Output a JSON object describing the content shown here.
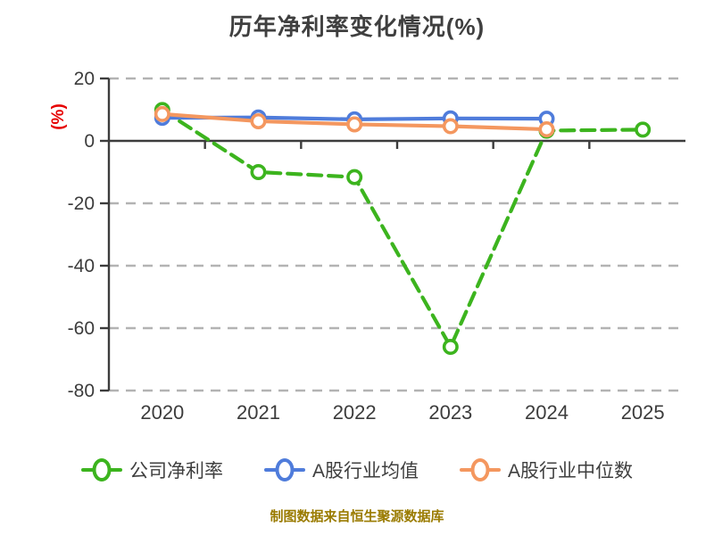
{
  "footer_note": "制图数据来自恒生聚源数据库",
  "chart_data": {
    "type": "line",
    "title": "历年净利率变化情况(%)",
    "ylabel": "(%)",
    "ylabel_color": "#e60000",
    "categories": [
      "2020",
      "2021",
      "2022",
      "2023",
      "2024",
      "2025"
    ],
    "y_ticks": [
      20,
      0,
      -20,
      -40,
      -60,
      -80
    ],
    "ylim": [
      -80,
      20
    ],
    "grid": "horizontal-dashed",
    "legend_position": "bottom",
    "series": [
      {
        "name": "公司净利率",
        "color": "#3cb41e",
        "style": "dashed",
        "marker": "circle-white-fill",
        "values": [
          9.9,
          -10.0,
          -11.6,
          -66.0,
          3.3,
          3.6
        ]
      },
      {
        "name": "A股行业均值",
        "color": "#4f7cdb",
        "style": "solid",
        "marker": "circle-white-fill",
        "values": [
          7.4,
          7.5,
          6.9,
          7.2,
          7.1,
          null
        ]
      },
      {
        "name": "A股行业中位数",
        "color": "#f4975f",
        "style": "solid",
        "marker": "circle-white-fill",
        "values": [
          8.6,
          6.3,
          5.3,
          4.7,
          3.7,
          null
        ]
      }
    ],
    "axis_color": "#3c3c3c",
    "grid_color": "#b3b3b3",
    "tick_label_color": "#3c3c3c"
  }
}
